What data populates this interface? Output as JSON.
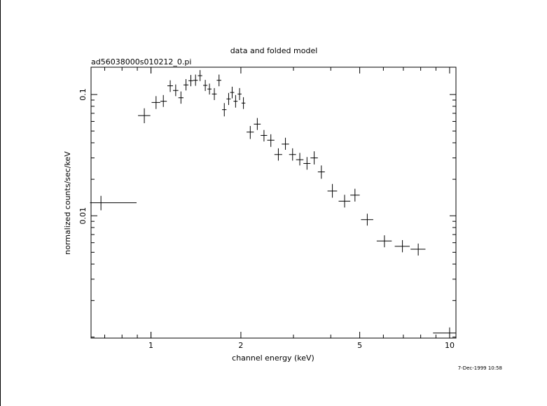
{
  "chart_data": {
    "type": "scatter",
    "title": "data and folded model",
    "subtitle": "ad56038000s010212_0.pi",
    "xlabel": "channel energy (keV)",
    "ylabel": "normalized counts/sec/keV",
    "timestamp": "7-Dec-1999 10:58",
    "x_scale": "log",
    "y_scale": "log",
    "xlim": [
      0.63,
      10.5
    ],
    "ylim": [
      0.00098,
      0.168
    ],
    "x_ticks": [
      {
        "value": 1,
        "label": "1"
      },
      {
        "value": 2,
        "label": "2"
      },
      {
        "value": 5,
        "label": "5"
      },
      {
        "value": 10,
        "label": "10"
      }
    ],
    "y_ticks": [
      {
        "value": 0.01,
        "label": "0.01"
      },
      {
        "value": 0.1,
        "label": "0.1"
      }
    ],
    "grid": false,
    "marker": "crosses with x-bin and y-error bars",
    "points": [
      {
        "x": 0.68,
        "xlo": 0.625,
        "xhi": 0.895,
        "y": 0.0128,
        "ylo": 0.0111,
        "yhi": 0.0146
      },
      {
        "x": 0.95,
        "xlo": 0.905,
        "xhi": 0.995,
        "y": 0.067,
        "ylo": 0.058,
        "yhi": 0.077
      },
      {
        "x": 1.04,
        "xlo": 1.005,
        "xhi": 1.075,
        "y": 0.086,
        "ylo": 0.076,
        "yhi": 0.097
      },
      {
        "x": 1.1,
        "xlo": 1.075,
        "xhi": 1.13,
        "y": 0.088,
        "ylo": 0.079,
        "yhi": 0.099
      },
      {
        "x": 1.16,
        "xlo": 1.135,
        "xhi": 1.185,
        "y": 0.118,
        "ylo": 0.105,
        "yhi": 0.131
      },
      {
        "x": 1.21,
        "xlo": 1.185,
        "xhi": 1.235,
        "y": 0.108,
        "ylo": 0.097,
        "yhi": 0.121
      },
      {
        "x": 1.26,
        "xlo": 1.235,
        "xhi": 1.285,
        "y": 0.094,
        "ylo": 0.084,
        "yhi": 0.106
      },
      {
        "x": 1.31,
        "xlo": 1.285,
        "xhi": 1.335,
        "y": 0.12,
        "ylo": 0.108,
        "yhi": 0.134
      },
      {
        "x": 1.36,
        "xlo": 1.335,
        "xhi": 1.385,
        "y": 0.13,
        "ylo": 0.117,
        "yhi": 0.145
      },
      {
        "x": 1.41,
        "xlo": 1.385,
        "xhi": 1.435,
        "y": 0.131,
        "ylo": 0.118,
        "yhi": 0.146
      },
      {
        "x": 1.46,
        "xlo": 1.435,
        "xhi": 1.485,
        "y": 0.143,
        "ylo": 0.129,
        "yhi": 0.159
      },
      {
        "x": 1.52,
        "xlo": 1.495,
        "xhi": 1.545,
        "y": 0.119,
        "ylo": 0.107,
        "yhi": 0.132
      },
      {
        "x": 1.57,
        "xlo": 1.545,
        "xhi": 1.595,
        "y": 0.111,
        "ylo": 0.1,
        "yhi": 0.123
      },
      {
        "x": 1.63,
        "xlo": 1.6,
        "xhi": 1.66,
        "y": 0.101,
        "ylo": 0.09,
        "yhi": 0.113
      },
      {
        "x": 1.69,
        "xlo": 1.66,
        "xhi": 1.72,
        "y": 0.131,
        "ylo": 0.117,
        "yhi": 0.146
      },
      {
        "x": 1.76,
        "xlo": 1.73,
        "xhi": 1.79,
        "y": 0.075,
        "ylo": 0.066,
        "yhi": 0.085
      },
      {
        "x": 1.82,
        "xlo": 1.79,
        "xhi": 1.85,
        "y": 0.092,
        "ylo": 0.082,
        "yhi": 0.103
      },
      {
        "x": 1.87,
        "xlo": 1.84,
        "xhi": 1.9,
        "y": 0.104,
        "ylo": 0.093,
        "yhi": 0.116
      },
      {
        "x": 1.92,
        "xlo": 1.89,
        "xhi": 1.95,
        "y": 0.088,
        "ylo": 0.078,
        "yhi": 0.099
      },
      {
        "x": 1.98,
        "xlo": 1.95,
        "xhi": 2.01,
        "y": 0.101,
        "ylo": 0.09,
        "yhi": 0.113
      },
      {
        "x": 2.04,
        "xlo": 2.01,
        "xhi": 2.07,
        "y": 0.085,
        "ylo": 0.076,
        "yhi": 0.095
      },
      {
        "x": 2.15,
        "xlo": 2.09,
        "xhi": 2.21,
        "y": 0.049,
        "ylo": 0.043,
        "yhi": 0.055
      },
      {
        "x": 2.27,
        "xlo": 2.21,
        "xhi": 2.33,
        "y": 0.057,
        "ylo": 0.051,
        "yhi": 0.064
      },
      {
        "x": 2.39,
        "xlo": 2.33,
        "xhi": 2.45,
        "y": 0.046,
        "ylo": 0.041,
        "yhi": 0.051
      },
      {
        "x": 2.52,
        "xlo": 2.45,
        "xhi": 2.59,
        "y": 0.042,
        "ylo": 0.037,
        "yhi": 0.047
      },
      {
        "x": 2.67,
        "xlo": 2.59,
        "xhi": 2.75,
        "y": 0.032,
        "ylo": 0.0285,
        "yhi": 0.036
      },
      {
        "x": 2.82,
        "xlo": 2.74,
        "xhi": 2.9,
        "y": 0.039,
        "ylo": 0.035,
        "yhi": 0.044
      },
      {
        "x": 2.98,
        "xlo": 2.9,
        "xhi": 3.06,
        "y": 0.032,
        "ylo": 0.0285,
        "yhi": 0.036
      },
      {
        "x": 3.15,
        "xlo": 3.06,
        "xhi": 3.24,
        "y": 0.029,
        "ylo": 0.026,
        "yhi": 0.033
      },
      {
        "x": 3.33,
        "xlo": 3.24,
        "xhi": 3.42,
        "y": 0.027,
        "ylo": 0.024,
        "yhi": 0.0305
      },
      {
        "x": 3.52,
        "xlo": 3.42,
        "xhi": 3.62,
        "y": 0.03,
        "ylo": 0.0265,
        "yhi": 0.034
      },
      {
        "x": 3.72,
        "xlo": 3.62,
        "xhi": 3.82,
        "y": 0.023,
        "ylo": 0.0202,
        "yhi": 0.026
      },
      {
        "x": 4.05,
        "xlo": 3.9,
        "xhi": 4.2,
        "y": 0.016,
        "ylo": 0.0141,
        "yhi": 0.0183
      },
      {
        "x": 4.45,
        "xlo": 4.25,
        "xhi": 4.65,
        "y": 0.0132,
        "ylo": 0.0117,
        "yhi": 0.0149
      },
      {
        "x": 4.82,
        "xlo": 4.65,
        "xhi": 5.0,
        "y": 0.0148,
        "ylo": 0.0131,
        "yhi": 0.0167
      },
      {
        "x": 5.3,
        "xlo": 5.05,
        "xhi": 5.55,
        "y": 0.0093,
        "ylo": 0.0083,
        "yhi": 0.0104
      },
      {
        "x": 6.05,
        "xlo": 5.7,
        "xhi": 6.4,
        "y": 0.0062,
        "ylo": 0.0055,
        "yhi": 0.0069
      },
      {
        "x": 6.95,
        "xlo": 6.55,
        "xhi": 7.35,
        "y": 0.0056,
        "ylo": 0.005,
        "yhi": 0.0063
      },
      {
        "x": 7.85,
        "xlo": 7.4,
        "xhi": 8.3,
        "y": 0.0053,
        "ylo": 0.0047,
        "yhi": 0.0059
      },
      {
        "x": 10.0,
        "xlo": 8.8,
        "xhi": 10.5,
        "y": 0.00108,
        "ylo": 0.00098,
        "yhi": 0.0012
      }
    ]
  }
}
